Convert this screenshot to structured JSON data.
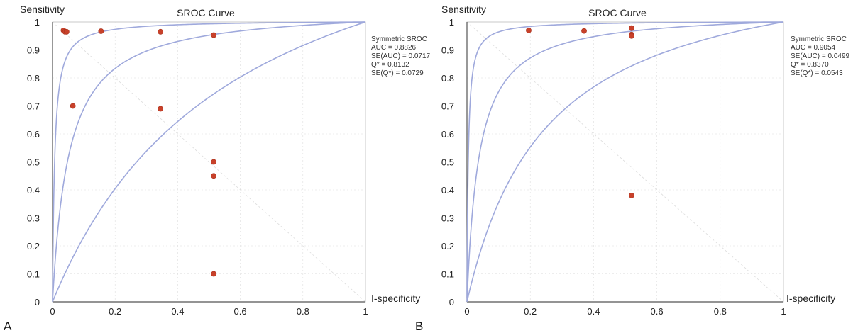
{
  "figure": {
    "panels": [
      {
        "letter": "A",
        "stats": [
          "Symmetric SROC",
          "AUC = 0.8826",
          "SE(AUC) = 0.0717",
          "Q* = 0.8132",
          "SE(Q*) = 0.0729"
        ]
      },
      {
        "letter": "B",
        "stats": [
          "Symmetric SROC",
          "AUC = 0.9054",
          "SE(AUC) = 0.0499",
          "Q* = 0.8370",
          "SE(Q*) = 0.0543"
        ]
      }
    ]
  },
  "colors": {
    "curve": "#9fa9dc",
    "point": "#c8412a",
    "grid": "#dcdcdc",
    "axis": "#555555"
  },
  "chart_data": [
    {
      "type": "scatter",
      "title": "SROC Curve",
      "xlabel": "I-specificity",
      "ylabel": "Sensitivity",
      "xlim": [
        0,
        1
      ],
      "ylim": [
        0,
        1
      ],
      "xticks": [
        "0",
        "0.2",
        "0.4",
        "0.6",
        "0.8",
        "1"
      ],
      "yticks": [
        "0",
        "0.1",
        "0.2",
        "0.3",
        "0.4",
        "0.5",
        "0.6",
        "0.7",
        "0.8",
        "0.9",
        "1"
      ],
      "grid": true,
      "points": [
        {
          "x": 0.035,
          "y": 0.97
        },
        {
          "x": 0.04,
          "y": 0.965
        },
        {
          "x": 0.045,
          "y": 0.965
        },
        {
          "x": 0.155,
          "y": 0.967
        },
        {
          "x": 0.345,
          "y": 0.965
        },
        {
          "x": 0.515,
          "y": 0.953
        },
        {
          "x": 0.065,
          "y": 0.7
        },
        {
          "x": 0.345,
          "y": 0.69
        },
        {
          "x": 0.515,
          "y": 0.5
        },
        {
          "x": 0.515,
          "y": 0.45
        },
        {
          "x": 0.515,
          "y": 0.1
        }
      ],
      "curves": [
        {
          "kind": "sroc",
          "d": 5.0
        },
        {
          "kind": "sroc",
          "d": 3.0
        },
        {
          "kind": "sroc",
          "d": 1.0
        }
      ]
    },
    {
      "type": "scatter",
      "title": "SROC Curve",
      "xlabel": "I-specificity",
      "ylabel": "Sensitivity",
      "xlim": [
        0,
        1
      ],
      "ylim": [
        0,
        1
      ],
      "xticks": [
        "0",
        "0.2",
        "0.4",
        "0.6",
        "0.8",
        "1"
      ],
      "yticks": [
        "0",
        "0.1",
        "0.2",
        "0.3",
        "0.4",
        "0.5",
        "0.6",
        "0.7",
        "0.8",
        "0.9",
        "1"
      ],
      "grid": true,
      "points": [
        {
          "x": 0.195,
          "y": 0.97
        },
        {
          "x": 0.37,
          "y": 0.968
        },
        {
          "x": 0.52,
          "y": 0.978
        },
        {
          "x": 0.52,
          "y": 0.955
        },
        {
          "x": 0.52,
          "y": 0.95
        },
        {
          "x": 0.52,
          "y": 0.38
        }
      ],
      "curves": [
        {
          "kind": "sroc",
          "d": 5.5
        },
        {
          "kind": "sroc",
          "d": 3.3
        },
        {
          "kind": "sroc",
          "d": 1.6
        }
      ]
    }
  ]
}
